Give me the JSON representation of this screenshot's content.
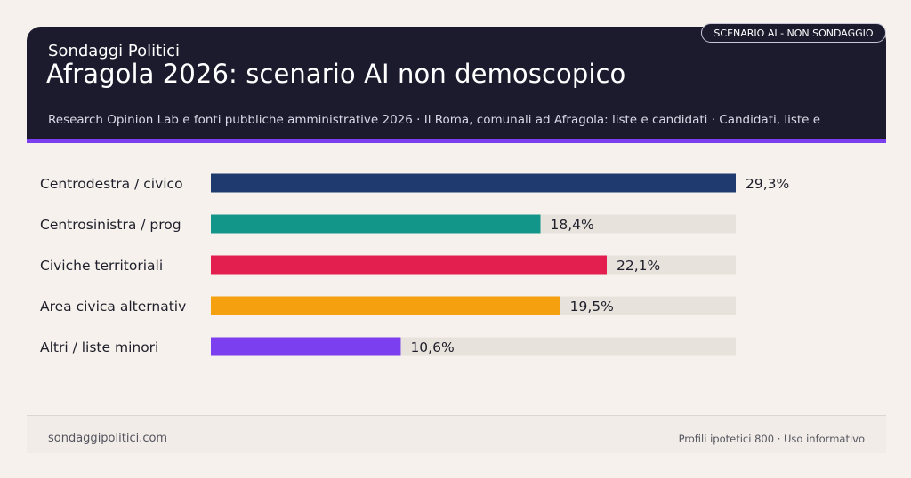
{
  "header": {
    "brand": "Sondaggi Politici",
    "title": "Afragola 2026: scenario AI non demoscopico",
    "sources": "Research Opinion Lab e fonti pubbliche amministrative 2026 · Il Roma, comunali ad Afragola: liste e candidati · Candidati, liste e",
    "badge": "SCENARIO AI - NON SONDAGGIO"
  },
  "colors": {
    "header_bg": "#1c1b2e",
    "accent": "#7b3ff0",
    "background": "#f6f1ec",
    "track": "#e8e2dc"
  },
  "chart_data": {
    "type": "bar",
    "orientation": "horizontal",
    "categories": [
      "Centrodestra / civico",
      "Centrosinistra / prog",
      "Civiche territoriali",
      "Area civica alternativ",
      "Altri / liste minori"
    ],
    "values": [
      29.3,
      18.4,
      22.1,
      19.5,
      10.6
    ],
    "value_labels": [
      "29,3%",
      "18,4%",
      "22,1%",
      "19,5%",
      "10,6%"
    ],
    "colors": [
      "#1f3a6e",
      "#13968a",
      "#e21f4f",
      "#f5a00f",
      "#7b3ff0"
    ],
    "xlim": [
      0,
      29.3
    ],
    "grid": false,
    "legend": "none"
  },
  "footer": {
    "left": "sondaggipolitici.com",
    "right": "Profili ipotetici 800 · Uso informativo"
  }
}
